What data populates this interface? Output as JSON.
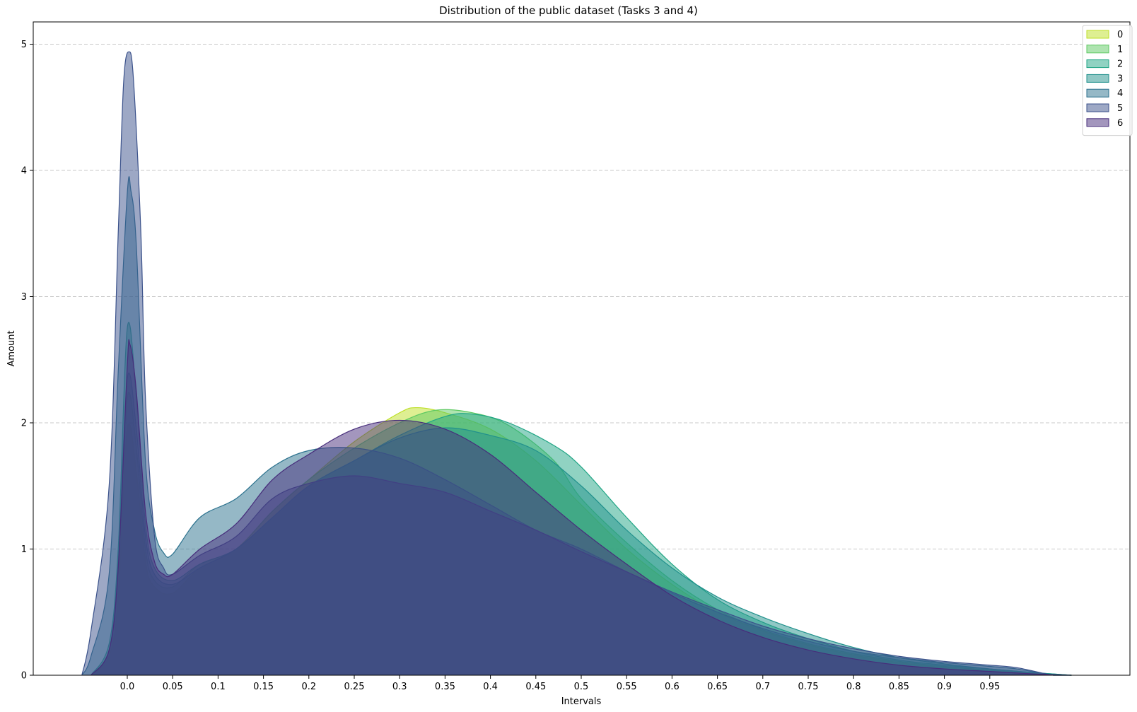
{
  "chart_data": {
    "type": "area",
    "title": "Distribution of the public dataset (Tasks 3 and 4)",
    "xlabel": "Intervals",
    "ylabel": "Amount",
    "x_ticks": [
      "0.0",
      "0.05",
      "0.1",
      "0.15",
      "0.2",
      "0.25",
      "0.3",
      "0.35",
      "0.4",
      "0.45",
      "0.5",
      "0.55",
      "0.6",
      "0.65",
      "0.7",
      "0.75",
      "0.8",
      "0.85",
      "0.9",
      "0.95"
    ],
    "y_ticks": [
      "0",
      "1",
      "2",
      "3",
      "4",
      "5"
    ],
    "xlim": [
      -0.05,
      1.05
    ],
    "ylim": [
      0,
      5.2
    ],
    "grid": "horizontal dashed",
    "legend_position": "top-right",
    "series": [
      {
        "name": "0",
        "color": "#bddf26",
        "points": [
          [
            -0.04,
            0
          ],
          [
            -0.02,
            0.15
          ],
          [
            -0.01,
            0.6
          ],
          [
            0,
            1.95
          ],
          [
            0.01,
            1.6
          ],
          [
            0.02,
            0.9
          ],
          [
            0.03,
            0.7
          ],
          [
            0.05,
            0.65
          ],
          [
            0.08,
            0.85
          ],
          [
            0.12,
            1.0
          ],
          [
            0.16,
            1.3
          ],
          [
            0.2,
            1.55
          ],
          [
            0.25,
            1.85
          ],
          [
            0.3,
            2.08
          ],
          [
            0.32,
            2.12
          ],
          [
            0.35,
            2.08
          ],
          [
            0.4,
            1.95
          ],
          [
            0.45,
            1.7
          ],
          [
            0.5,
            1.35
          ],
          [
            0.55,
            1.0
          ],
          [
            0.6,
            0.72
          ],
          [
            0.65,
            0.5
          ],
          [
            0.7,
            0.35
          ],
          [
            0.75,
            0.24
          ],
          [
            0.8,
            0.16
          ],
          [
            0.85,
            0.1
          ],
          [
            0.9,
            0.06
          ],
          [
            0.95,
            0.03
          ],
          [
            1.0,
            0.01
          ],
          [
            1.04,
            0
          ]
        ]
      },
      {
        "name": "1",
        "color": "#5ec962",
        "points": [
          [
            -0.04,
            0
          ],
          [
            -0.02,
            0.2
          ],
          [
            -0.01,
            0.8
          ],
          [
            0,
            2.2
          ],
          [
            0.01,
            1.8
          ],
          [
            0.02,
            1.0
          ],
          [
            0.03,
            0.75
          ],
          [
            0.05,
            0.7
          ],
          [
            0.08,
            0.88
          ],
          [
            0.12,
            1.0
          ],
          [
            0.16,
            1.3
          ],
          [
            0.2,
            1.55
          ],
          [
            0.25,
            1.8
          ],
          [
            0.3,
            2.0
          ],
          [
            0.34,
            2.1
          ],
          [
            0.38,
            2.08
          ],
          [
            0.42,
            1.98
          ],
          [
            0.47,
            1.7
          ],
          [
            0.5,
            1.4
          ],
          [
            0.55,
            1.05
          ],
          [
            0.6,
            0.75
          ],
          [
            0.65,
            0.52
          ],
          [
            0.7,
            0.36
          ],
          [
            0.75,
            0.25
          ],
          [
            0.8,
            0.17
          ],
          [
            0.85,
            0.11
          ],
          [
            0.9,
            0.07
          ],
          [
            0.95,
            0.04
          ],
          [
            1.0,
            0.015
          ],
          [
            1.04,
            0
          ]
        ]
      },
      {
        "name": "2",
        "color": "#21a585",
        "points": [
          [
            -0.04,
            0
          ],
          [
            -0.02,
            0.25
          ],
          [
            -0.01,
            1.0
          ],
          [
            0,
            2.75
          ],
          [
            0.01,
            2.2
          ],
          [
            0.02,
            1.2
          ],
          [
            0.03,
            0.85
          ],
          [
            0.05,
            0.75
          ],
          [
            0.08,
            0.88
          ],
          [
            0.12,
            1.0
          ],
          [
            0.16,
            1.25
          ],
          [
            0.2,
            1.5
          ],
          [
            0.25,
            1.7
          ],
          [
            0.3,
            1.9
          ],
          [
            0.35,
            2.05
          ],
          [
            0.38,
            2.07
          ],
          [
            0.42,
            2.0
          ],
          [
            0.47,
            1.82
          ],
          [
            0.5,
            1.65
          ],
          [
            0.55,
            1.25
          ],
          [
            0.6,
            0.88
          ],
          [
            0.65,
            0.6
          ],
          [
            0.7,
            0.42
          ],
          [
            0.75,
            0.29
          ],
          [
            0.8,
            0.19
          ],
          [
            0.85,
            0.12
          ],
          [
            0.9,
            0.08
          ],
          [
            0.95,
            0.05
          ],
          [
            1.0,
            0.02
          ],
          [
            1.04,
            0
          ]
        ]
      },
      {
        "name": "3",
        "color": "#21918c",
        "points": [
          [
            -0.04,
            0
          ],
          [
            -0.02,
            0.2
          ],
          [
            -0.01,
            0.9
          ],
          [
            0,
            2.35
          ],
          [
            0.01,
            1.95
          ],
          [
            0.02,
            1.1
          ],
          [
            0.03,
            0.8
          ],
          [
            0.05,
            0.72
          ],
          [
            0.08,
            0.85
          ],
          [
            0.12,
            1.0
          ],
          [
            0.16,
            1.25
          ],
          [
            0.2,
            1.5
          ],
          [
            0.25,
            1.7
          ],
          [
            0.3,
            1.88
          ],
          [
            0.35,
            1.96
          ],
          [
            0.4,
            1.9
          ],
          [
            0.45,
            1.78
          ],
          [
            0.5,
            1.5
          ],
          [
            0.55,
            1.15
          ],
          [
            0.6,
            0.85
          ],
          [
            0.65,
            0.62
          ],
          [
            0.7,
            0.46
          ],
          [
            0.75,
            0.33
          ],
          [
            0.8,
            0.22
          ],
          [
            0.85,
            0.14
          ],
          [
            0.9,
            0.09
          ],
          [
            0.95,
            0.05
          ],
          [
            1.0,
            0.02
          ],
          [
            1.04,
            0
          ]
        ]
      },
      {
        "name": "4",
        "color": "#2c728e",
        "points": [
          [
            -0.05,
            0
          ],
          [
            -0.04,
            0.15
          ],
          [
            -0.02,
            0.8
          ],
          [
            -0.01,
            2.4
          ],
          [
            0,
            3.82
          ],
          [
            0.004,
            3.84
          ],
          [
            0.01,
            3.4
          ],
          [
            0.02,
            1.7
          ],
          [
            0.03,
            1.15
          ],
          [
            0.04,
            0.97
          ],
          [
            0.05,
            0.96
          ],
          [
            0.08,
            1.25
          ],
          [
            0.12,
            1.4
          ],
          [
            0.16,
            1.65
          ],
          [
            0.2,
            1.78
          ],
          [
            0.25,
            1.8
          ],
          [
            0.3,
            1.72
          ],
          [
            0.35,
            1.55
          ],
          [
            0.4,
            1.35
          ],
          [
            0.45,
            1.15
          ],
          [
            0.5,
            1.0
          ],
          [
            0.55,
            0.82
          ],
          [
            0.6,
            0.65
          ],
          [
            0.65,
            0.5
          ],
          [
            0.7,
            0.37
          ],
          [
            0.75,
            0.27
          ],
          [
            0.8,
            0.19
          ],
          [
            0.85,
            0.14
          ],
          [
            0.9,
            0.1
          ],
          [
            0.95,
            0.07
          ],
          [
            0.98,
            0.05
          ],
          [
            1.02,
            0
          ],
          [
            1.04,
            0
          ]
        ]
      },
      {
        "name": "5",
        "color": "#3b528b",
        "points": [
          [
            -0.05,
            0
          ],
          [
            -0.04,
            0.35
          ],
          [
            -0.02,
            1.5
          ],
          [
            -0.01,
            3.5
          ],
          [
            -0.004,
            4.7
          ],
          [
            0.002,
            4.94
          ],
          [
            0.007,
            4.7
          ],
          [
            0.015,
            3.5
          ],
          [
            0.02,
            2.2
          ],
          [
            0.03,
            1.1
          ],
          [
            0.04,
            0.85
          ],
          [
            0.05,
            0.8
          ],
          [
            0.08,
            0.95
          ],
          [
            0.12,
            1.1
          ],
          [
            0.16,
            1.4
          ],
          [
            0.2,
            1.52
          ],
          [
            0.25,
            1.58
          ],
          [
            0.3,
            1.52
          ],
          [
            0.35,
            1.45
          ],
          [
            0.4,
            1.3
          ],
          [
            0.45,
            1.15
          ],
          [
            0.5,
            0.98
          ],
          [
            0.55,
            0.82
          ],
          [
            0.6,
            0.66
          ],
          [
            0.65,
            0.52
          ],
          [
            0.7,
            0.39
          ],
          [
            0.75,
            0.29
          ],
          [
            0.8,
            0.21
          ],
          [
            0.85,
            0.15
          ],
          [
            0.9,
            0.11
          ],
          [
            0.95,
            0.08
          ],
          [
            0.98,
            0.06
          ],
          [
            1.02,
            0
          ],
          [
            1.04,
            0
          ]
        ]
      },
      {
        "name": "6",
        "color": "#472d7b",
        "points": [
          [
            -0.04,
            0
          ],
          [
            -0.02,
            0.2
          ],
          [
            -0.01,
            0.85
          ],
          [
            0,
            2.45
          ],
          [
            0.003,
            2.62
          ],
          [
            0.01,
            2.25
          ],
          [
            0.02,
            1.3
          ],
          [
            0.03,
            0.9
          ],
          [
            0.04,
            0.8
          ],
          [
            0.05,
            0.8
          ],
          [
            0.08,
            1.0
          ],
          [
            0.12,
            1.2
          ],
          [
            0.16,
            1.55
          ],
          [
            0.2,
            1.75
          ],
          [
            0.25,
            1.95
          ],
          [
            0.3,
            2.02
          ],
          [
            0.35,
            1.95
          ],
          [
            0.4,
            1.75
          ],
          [
            0.45,
            1.45
          ],
          [
            0.5,
            1.15
          ],
          [
            0.55,
            0.88
          ],
          [
            0.6,
            0.63
          ],
          [
            0.65,
            0.44
          ],
          [
            0.7,
            0.3
          ],
          [
            0.75,
            0.2
          ],
          [
            0.8,
            0.13
          ],
          [
            0.85,
            0.08
          ],
          [
            0.9,
            0.05
          ],
          [
            0.95,
            0.03
          ],
          [
            1.0,
            0.01
          ],
          [
            1.04,
            0
          ]
        ]
      }
    ]
  }
}
